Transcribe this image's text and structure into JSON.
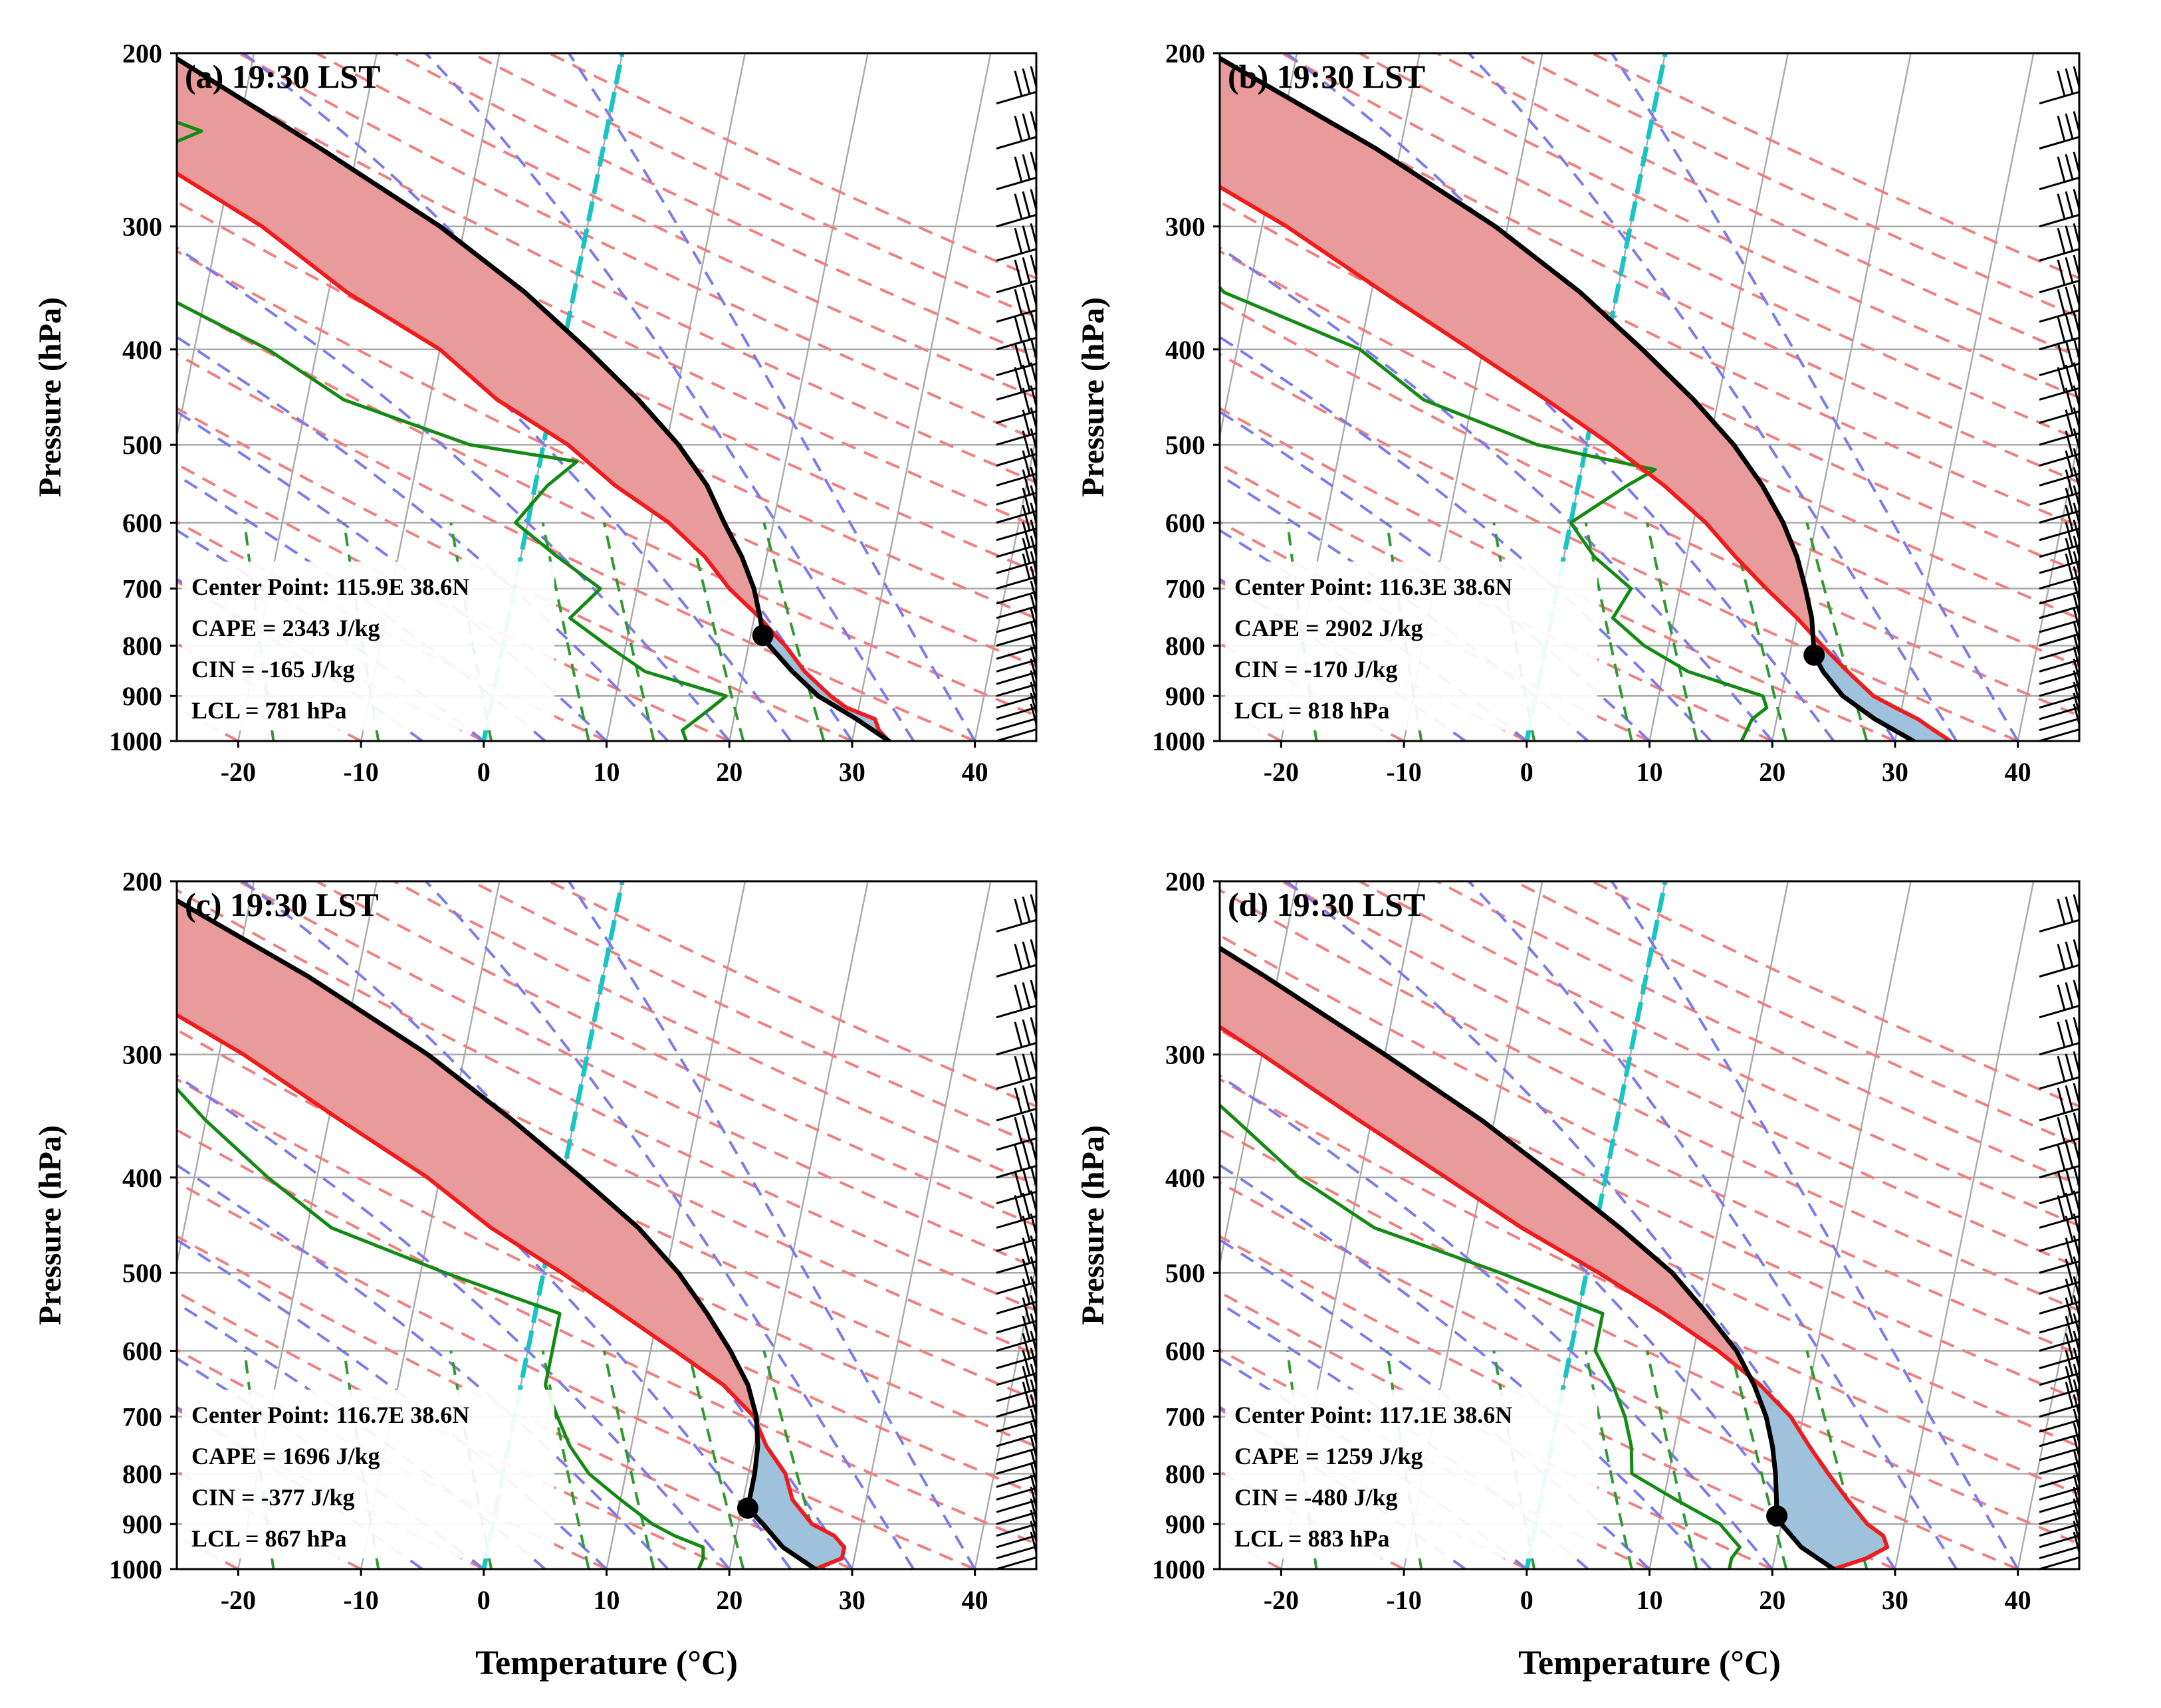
{
  "figure": {
    "y_label": "Pressure (hPa)",
    "x_label": "Temperature (°C)"
  },
  "colors": {
    "temperature": "#ee1c1c",
    "dewpoint": "#138a13",
    "parcel": "#000000",
    "cape_fill": "#e99a9a",
    "cin_fill": "#9fc2dc",
    "dry_adiabat": "#f08080",
    "moist_adiabat": "#7b7bef",
    "mixing_ratio": "#2f9a2f",
    "freezing_line": "#19c4c4",
    "isotherm": "#aaaaaa"
  },
  "chart_data": [
    {
      "type": "skew-t",
      "panel": "a",
      "title": "(a) 19:30 LST",
      "info": [
        "Center Point: 115.9E 38.6N",
        "CAPE = 2343 J/kg",
        "CIN = -165 J/kg",
        "LCL = 781 hPa"
      ],
      "xlabel": "Temperature (°C)",
      "ylabel": "Pressure (hPa)",
      "xlim": [
        -25,
        45
      ],
      "ylim": [
        1000,
        200
      ],
      "xticks": [
        "-20",
        "-10",
        "0",
        "10",
        "20",
        "30",
        "40"
      ],
      "yticks": [
        "200",
        "300",
        "400",
        "500",
        "600",
        "700",
        "800",
        "900",
        "1000"
      ],
      "lcl": {
        "p": 781,
        "t": 21
      },
      "temperature": [
        [
          1000,
          33
        ],
        [
          975,
          32
        ],
        [
          950,
          31.5
        ],
        [
          925,
          29
        ],
        [
          900,
          27.5
        ],
        [
          850,
          25
        ],
        [
          800,
          23
        ],
        [
          781,
          22
        ],
        [
          750,
          20.5
        ],
        [
          700,
          17.5
        ],
        [
          650,
          15
        ],
        [
          600,
          11.5
        ],
        [
          550,
          6.5
        ],
        [
          500,
          2
        ],
        [
          450,
          -4.5
        ],
        [
          400,
          -10
        ],
        [
          350,
          -18.5
        ],
        [
          300,
          -26.5
        ],
        [
          250,
          -38
        ],
        [
          225,
          -46
        ],
        [
          210,
          -50
        ],
        [
          200,
          -51
        ]
      ],
      "dewpoint": [
        [
          1000,
          16.5
        ],
        [
          975,
          16
        ],
        [
          950,
          17
        ],
        [
          925,
          18
        ],
        [
          900,
          19
        ],
        [
          850,
          12
        ],
        [
          800,
          8.5
        ],
        [
          750,
          5
        ],
        [
          700,
          7
        ],
        [
          650,
          3
        ],
        [
          600,
          -1
        ],
        [
          550,
          1
        ],
        [
          520,
          3
        ],
        [
          500,
          -6
        ],
        [
          450,
          -17
        ],
        [
          400,
          -24
        ],
        [
          350,
          -34
        ],
        [
          300,
          -46
        ],
        [
          260,
          -39
        ],
        [
          240,
          -33
        ],
        [
          220,
          -42
        ]
      ],
      "parcel": [
        [
          1000,
          33
        ],
        [
          950,
          30
        ],
        [
          900,
          26.5
        ],
        [
          850,
          24
        ],
        [
          800,
          21.7
        ],
        [
          781,
          21
        ],
        [
          750,
          20.5
        ],
        [
          700,
          19.5
        ],
        [
          650,
          18
        ],
        [
          600,
          16
        ],
        [
          550,
          14
        ],
        [
          500,
          11
        ],
        [
          450,
          7
        ],
        [
          400,
          2
        ],
        [
          350,
          -4
        ],
        [
          300,
          -12
        ],
        [
          250,
          -23
        ],
        [
          200,
          -37
        ]
      ]
    },
    {
      "type": "skew-t",
      "panel": "b",
      "title": "(b) 19:30 LST",
      "info": [
        "Center Point: 116.3E 38.6N",
        "CAPE = 2902 J/kg",
        "CIN = -170 J/kg",
        "LCL = 818 hPa"
      ],
      "xlabel": "Temperature (°C)",
      "ylabel": "Pressure (hPa)",
      "xlim": [
        -25,
        45
      ],
      "ylim": [
        1000,
        200
      ],
      "xticks": [
        "-20",
        "-10",
        "0",
        "10",
        "20",
        "30",
        "40"
      ],
      "yticks": [
        "200",
        "300",
        "400",
        "500",
        "600",
        "700",
        "800",
        "900",
        "1000"
      ],
      "lcl": {
        "p": 818,
        "t": 22
      },
      "temperature": [
        [
          1000,
          34.5
        ],
        [
          975,
          33
        ],
        [
          950,
          31.5
        ],
        [
          925,
          29.5
        ],
        [
          900,
          27.5
        ],
        [
          850,
          25
        ],
        [
          800,
          22.5
        ],
        [
          750,
          20
        ],
        [
          700,
          17
        ],
        [
          650,
          14
        ],
        [
          600,
          11
        ],
        [
          550,
          7
        ],
        [
          500,
          2
        ],
        [
          450,
          -4
        ],
        [
          400,
          -11
        ],
        [
          350,
          -19
        ],
        [
          300,
          -28
        ],
        [
          250,
          -40
        ],
        [
          225,
          -47
        ],
        [
          210,
          -51
        ],
        [
          200,
          -52
        ]
      ],
      "dewpoint": [
        [
          1000,
          17.5
        ],
        [
          950,
          18
        ],
        [
          925,
          19
        ],
        [
          900,
          18.5
        ],
        [
          850,
          12
        ],
        [
          800,
          8
        ],
        [
          750,
          5
        ],
        [
          700,
          6
        ],
        [
          650,
          2.5
        ],
        [
          600,
          0
        ],
        [
          550,
          4
        ],
        [
          530,
          6
        ],
        [
          500,
          -4
        ],
        [
          450,
          -14
        ],
        [
          400,
          -20
        ],
        [
          350,
          -32
        ],
        [
          300,
          -38
        ],
        [
          270,
          -42
        ],
        [
          230,
          -50
        ],
        [
          220,
          -47
        ]
      ],
      "parcel": [
        [
          1000,
          31.5
        ],
        [
          950,
          28
        ],
        [
          900,
          25
        ],
        [
          850,
          23
        ],
        [
          818,
          22
        ],
        [
          800,
          21.8
        ],
        [
          750,
          21.2
        ],
        [
          700,
          20.2
        ],
        [
          650,
          19
        ],
        [
          600,
          17.3
        ],
        [
          550,
          15
        ],
        [
          500,
          12
        ],
        [
          450,
          8
        ],
        [
          400,
          3
        ],
        [
          350,
          -3
        ],
        [
          300,
          -11
        ],
        [
          250,
          -22
        ],
        [
          200,
          -37
        ]
      ]
    },
    {
      "type": "skew-t",
      "panel": "c",
      "title": "(c) 19:30 LST",
      "info": [
        "Center Point: 116.7E 38.6N",
        "CAPE = 1696 J/kg",
        "CIN = -377 J/kg",
        "LCL = 867 hPa"
      ],
      "xlabel": "Temperature (°C)",
      "ylabel": "Pressure (hPa)",
      "xlim": [
        -25,
        45
      ],
      "ylim": [
        1000,
        200
      ],
      "xticks": [
        "-20",
        "-10",
        "0",
        "10",
        "20",
        "30",
        "40"
      ],
      "yticks": [
        "200",
        "300",
        "400",
        "500",
        "600",
        "700",
        "800",
        "900",
        "1000"
      ],
      "lcl": {
        "p": 867,
        "t": 20.5
      },
      "temperature": [
        [
          1000,
          27
        ],
        [
          975,
          29
        ],
        [
          950,
          29
        ],
        [
          925,
          28
        ],
        [
          900,
          26
        ],
        [
          850,
          24
        ],
        [
          800,
          23
        ],
        [
          750,
          21
        ],
        [
          700,
          19.5
        ],
        [
          650,
          16.5
        ],
        [
          600,
          12
        ],
        [
          550,
          7
        ],
        [
          500,
          1.5
        ],
        [
          450,
          -5
        ],
        [
          400,
          -11
        ],
        [
          350,
          -19
        ],
        [
          300,
          -28
        ],
        [
          250,
          -40
        ],
        [
          225,
          -47
        ],
        [
          210,
          -50
        ],
        [
          200,
          -51
        ]
      ],
      "dewpoint": [
        [
          1000,
          17.5
        ],
        [
          975,
          17.7
        ],
        [
          950,
          17.5
        ],
        [
          925,
          15
        ],
        [
          900,
          13
        ],
        [
          850,
          10
        ],
        [
          800,
          7
        ],
        [
          750,
          5
        ],
        [
          700,
          3.5
        ],
        [
          650,
          2
        ],
        [
          600,
          2
        ],
        [
          550,
          2
        ],
        [
          500,
          -8
        ],
        [
          450,
          -18
        ],
        [
          400,
          -24
        ],
        [
          350,
          -30
        ],
        [
          300,
          -36
        ],
        [
          250,
          -43
        ],
        [
          220,
          -50
        ]
      ],
      "parcel": [
        [
          1000,
          27
        ],
        [
          950,
          24
        ],
        [
          900,
          22
        ],
        [
          867,
          20.5
        ],
        [
          850,
          20.5
        ],
        [
          800,
          20.5
        ],
        [
          750,
          20.3
        ],
        [
          700,
          19.7
        ],
        [
          650,
          18.5
        ],
        [
          600,
          16.5
        ],
        [
          550,
          14
        ],
        [
          500,
          11
        ],
        [
          450,
          7
        ],
        [
          400,
          1.5
        ],
        [
          350,
          -5
        ],
        [
          300,
          -13
        ],
        [
          250,
          -24
        ],
        [
          200,
          -39
        ]
      ]
    },
    {
      "type": "skew-t",
      "panel": "d",
      "title": "(d) 19:30 LST",
      "info": [
        "Center Point: 117.1E 38.6N",
        "CAPE = 1259 J/kg",
        "CIN = -480 J/kg",
        "LCL = 883 hPa"
      ],
      "xlabel": "Temperature (°C)",
      "ylabel": "Pressure (hPa)",
      "xlim": [
        -25,
        45
      ],
      "ylim": [
        1000,
        200
      ],
      "xticks": [
        "-20",
        "-10",
        "0",
        "10",
        "20",
        "30",
        "40"
      ],
      "yticks": [
        "200",
        "300",
        "400",
        "500",
        "600",
        "700",
        "800",
        "900",
        "1000"
      ],
      "lcl": {
        "p": 883,
        "t": 19.5
      },
      "temperature": [
        [
          1000,
          25
        ],
        [
          975,
          27.5
        ],
        [
          950,
          29
        ],
        [
          925,
          28.5
        ],
        [
          900,
          27
        ],
        [
          850,
          25
        ],
        [
          800,
          23
        ],
        [
          750,
          21
        ],
        [
          700,
          19
        ],
        [
          650,
          16
        ],
        [
          600,
          12
        ],
        [
          550,
          7
        ],
        [
          500,
          1
        ],
        [
          450,
          -6
        ],
        [
          400,
          -13
        ],
        [
          350,
          -21
        ],
        [
          300,
          -30
        ],
        [
          250,
          -41
        ],
        [
          225,
          -47
        ],
        [
          210,
          -50
        ],
        [
          200,
          -50
        ]
      ],
      "dewpoint": [
        [
          1000,
          16.5
        ],
        [
          975,
          16.5
        ],
        [
          950,
          17
        ],
        [
          925,
          16
        ],
        [
          900,
          15
        ],
        [
          850,
          11
        ],
        [
          800,
          7
        ],
        [
          750,
          6.5
        ],
        [
          700,
          5.5
        ],
        [
          650,
          4
        ],
        [
          600,
          2
        ],
        [
          550,
          2
        ],
        [
          500,
          -7
        ],
        [
          450,
          -18
        ],
        [
          400,
          -25
        ],
        [
          350,
          -31
        ],
        [
          300,
          -38
        ],
        [
          250,
          -45
        ],
        [
          220,
          -50
        ]
      ],
      "parcel": [
        [
          1000,
          25
        ],
        [
          950,
          22
        ],
        [
          900,
          20
        ],
        [
          883,
          19.5
        ],
        [
          850,
          19.2
        ],
        [
          800,
          18.7
        ],
        [
          750,
          18
        ],
        [
          700,
          17
        ],
        [
          650,
          15.5
        ],
        [
          600,
          13.5
        ],
        [
          550,
          10.5
        ],
        [
          500,
          7
        ],
        [
          450,
          2
        ],
        [
          400,
          -4
        ],
        [
          350,
          -11
        ],
        [
          300,
          -20
        ],
        [
          250,
          -31
        ],
        [
          200,
          -45
        ]
      ]
    }
  ]
}
